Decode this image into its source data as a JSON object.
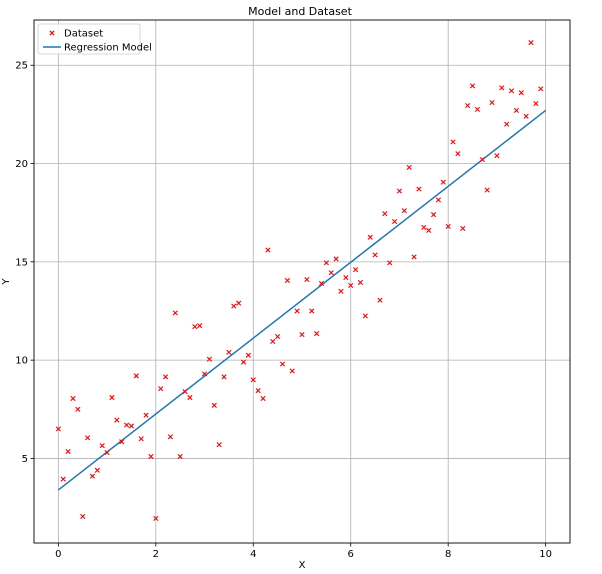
{
  "chart_data": {
    "type": "scatter",
    "title": "Model and Dataset",
    "xlabel": "X",
    "ylabel": "Y",
    "xlim": [
      -0.5,
      10.5
    ],
    "ylim": [
      0.7,
      27.3
    ],
    "xticks": [
      0,
      2,
      4,
      6,
      8,
      10
    ],
    "yticks": [
      5,
      10,
      15,
      20,
      25
    ],
    "grid": true,
    "legend_position": "top-left",
    "colors": {
      "dataset": "#ff0000",
      "model": "#1f77b4"
    },
    "series": [
      {
        "name": "Dataset",
        "kind": "scatter",
        "marker": "x",
        "points": [
          [
            0.0,
            6.5
          ],
          [
            0.1,
            3.95
          ],
          [
            0.2,
            5.35
          ],
          [
            0.3,
            8.05
          ],
          [
            0.4,
            7.5
          ],
          [
            0.5,
            2.05
          ],
          [
            0.6,
            6.05
          ],
          [
            0.7,
            4.1
          ],
          [
            0.8,
            4.4
          ],
          [
            0.9,
            5.65
          ],
          [
            1.0,
            5.3
          ],
          [
            1.1,
            8.1
          ],
          [
            1.2,
            6.95
          ],
          [
            1.3,
            5.85
          ],
          [
            1.4,
            6.7
          ],
          [
            1.5,
            6.65
          ],
          [
            1.6,
            9.2
          ],
          [
            1.7,
            6.0
          ],
          [
            1.8,
            7.2
          ],
          [
            1.9,
            5.1
          ],
          [
            2.0,
            1.95
          ],
          [
            2.1,
            8.55
          ],
          [
            2.2,
            9.15
          ],
          [
            2.3,
            6.1
          ],
          [
            2.4,
            12.4
          ],
          [
            2.5,
            5.1
          ],
          [
            2.6,
            8.4
          ],
          [
            2.7,
            8.1
          ],
          [
            2.8,
            11.7
          ],
          [
            2.9,
            11.75
          ],
          [
            3.0,
            9.3
          ],
          [
            3.1,
            10.05
          ],
          [
            3.2,
            7.7
          ],
          [
            3.3,
            5.7
          ],
          [
            3.4,
            9.15
          ],
          [
            3.5,
            10.4
          ],
          [
            3.6,
            12.75
          ],
          [
            3.7,
            12.9
          ],
          [
            3.8,
            9.9
          ],
          [
            3.9,
            10.25
          ],
          [
            4.0,
            9.0
          ],
          [
            4.1,
            8.45
          ],
          [
            4.2,
            8.05
          ],
          [
            4.3,
            15.6
          ],
          [
            4.4,
            10.95
          ],
          [
            4.5,
            11.2
          ],
          [
            4.6,
            9.8
          ],
          [
            4.7,
            14.05
          ],
          [
            4.8,
            9.45
          ],
          [
            4.9,
            12.5
          ],
          [
            5.0,
            11.3
          ],
          [
            5.1,
            14.1
          ],
          [
            5.2,
            12.5
          ],
          [
            5.3,
            11.35
          ],
          [
            5.4,
            13.9
          ],
          [
            5.5,
            14.95
          ],
          [
            5.6,
            14.45
          ],
          [
            5.7,
            15.15
          ],
          [
            5.8,
            13.5
          ],
          [
            5.9,
            14.2
          ],
          [
            6.0,
            13.8
          ],
          [
            6.1,
            14.6
          ],
          [
            6.2,
            13.95
          ],
          [
            6.3,
            12.25
          ],
          [
            6.4,
            16.25
          ],
          [
            6.5,
            15.35
          ],
          [
            6.6,
            13.05
          ],
          [
            6.7,
            17.45
          ],
          [
            6.8,
            14.95
          ],
          [
            6.9,
            17.05
          ],
          [
            7.0,
            18.6
          ],
          [
            7.1,
            17.6
          ],
          [
            7.2,
            19.8
          ],
          [
            7.3,
            15.25
          ],
          [
            7.4,
            18.7
          ],
          [
            7.5,
            16.75
          ],
          [
            7.6,
            16.6
          ],
          [
            7.7,
            17.4
          ],
          [
            7.8,
            18.15
          ],
          [
            7.9,
            19.05
          ],
          [
            8.0,
            16.8
          ],
          [
            8.1,
            21.1
          ],
          [
            8.2,
            20.5
          ],
          [
            8.3,
            16.7
          ],
          [
            8.4,
            22.95
          ],
          [
            8.5,
            23.95
          ],
          [
            8.6,
            22.75
          ],
          [
            8.7,
            20.2
          ],
          [
            8.8,
            18.65
          ],
          [
            8.9,
            23.1
          ],
          [
            9.0,
            20.4
          ],
          [
            9.1,
            23.85
          ],
          [
            9.2,
            22.0
          ],
          [
            9.3,
            23.7
          ],
          [
            9.4,
            22.7
          ],
          [
            9.5,
            23.6
          ],
          [
            9.6,
            22.4
          ],
          [
            9.7,
            26.15
          ],
          [
            9.8,
            23.05
          ],
          [
            9.9,
            23.8
          ]
        ]
      },
      {
        "name": "Regression Model",
        "kind": "line",
        "points": [
          [
            0.0,
            3.4
          ],
          [
            10.0,
            22.7
          ]
        ]
      }
    ]
  }
}
